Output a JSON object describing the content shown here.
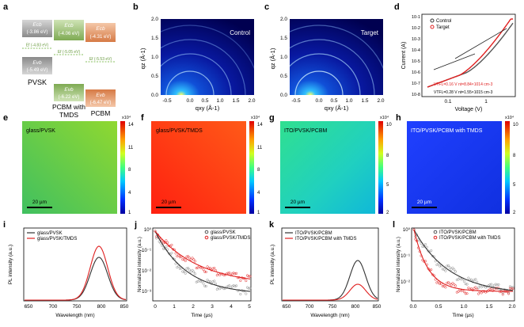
{
  "panels": {
    "a": {
      "letter": "a",
      "pvsk": {
        "ecb": "Ecb",
        "ecb_val": "(-3.86 eV)",
        "ef": "Ef (-4.83 eV)",
        "evb": "Evb",
        "evb_val": "(-5.49 eV)",
        "label": "PVSK"
      },
      "tmds": {
        "ecb": "Ecb",
        "ecb_val": "(-4.06 eV)",
        "ef": "Ef (-5.05 eV)",
        "evb": "Evb",
        "evb_val": "(-6.22 eV)",
        "label": "PCBM with TMDS"
      },
      "pcbm": {
        "ecb": "Ecb",
        "ecb_val": "(-4.31 eV)",
        "ef": "Ef (-5.53 eV)",
        "evb": "Evb",
        "evb_val": "(-6.47 eV)",
        "label": "PCBM"
      }
    },
    "b": {
      "letter": "b",
      "tag": "Control",
      "ylabel": "qz (Å-1)",
      "xlabel": "qxy (Å-1)",
      "xticks": [
        "-0.5",
        "0.0",
        "0.5",
        "1.0",
        "1.5",
        "2.0"
      ],
      "yticks": [
        "0.0",
        "0.5",
        "1.0",
        "1.5",
        "2.0"
      ]
    },
    "c": {
      "letter": "c",
      "tag": "Target",
      "ylabel": "qz (Å-1)",
      "xlabel": "qxy (Å-1)",
      "xticks": [
        "-0.5",
        "0.0",
        "0.5",
        "1.0",
        "1.5",
        "2.0"
      ],
      "yticks": [
        "0.0",
        "0.5",
        "1.0",
        "1.5",
        "2.0"
      ]
    },
    "d": {
      "letter": "d",
      "ylabel": "Current (A)",
      "xlabel": "Voltage (V)",
      "legend": [
        "Control",
        "Target"
      ],
      "yticks": [
        "10-8",
        "10-7",
        "10-6",
        "10-5",
        "10-4",
        "10-3",
        "10-2",
        "10-1"
      ],
      "xticks": [
        "0.1",
        "1"
      ],
      "note_red": "VTFL=0.16 V nt=8.84×1014 cm-3",
      "note_black": "VTFL=0.28 V nt=1.55×1015 cm-3"
    },
    "e": {
      "letter": "e",
      "label": "glass/PVSK",
      "scale": "20 µm",
      "cb_exp": "x10⁴",
      "cb_ticks": [
        "14",
        "11",
        "8",
        "4",
        "1"
      ]
    },
    "f": {
      "letter": "f",
      "label": "glass/PVSK/TMDS",
      "scale": "20 µm",
      "cb_exp": "x10⁴",
      "cb_ticks": [
        "14",
        "11",
        "8",
        "4",
        "1"
      ]
    },
    "g": {
      "letter": "g",
      "label": "ITO/PVSK/PCBM",
      "scale": "20 µm",
      "cb_exp": "x10⁴",
      "cb_ticks": [
        "10",
        "8",
        "5",
        "2"
      ]
    },
    "h": {
      "letter": "h",
      "label": "ITO/PVSK/PCBM with TMDS",
      "scale": "20 µm",
      "cb_exp": "x10⁴",
      "cb_ticks": [
        "10",
        "8",
        "5",
        "2"
      ]
    },
    "i": {
      "letter": "i",
      "ylabel": "PL intensity (a.u.)",
      "xlabel": "Wavelength (nm)",
      "legend": [
        "glass/PVSK",
        "glass/PVSK/TMDS"
      ],
      "xticks": [
        "650",
        "700",
        "750",
        "800",
        "850"
      ]
    },
    "j": {
      "letter": "j",
      "ylabel": "Normalized intensity (a.u.)",
      "xlabel": "Time (µs)",
      "legend": [
        "glass/PVSK",
        "glass/PVSK/TMDS"
      ],
      "xticks": [
        "0",
        "1",
        "2",
        "3",
        "4",
        "5"
      ],
      "yticks": [
        "10⁰",
        "10⁻¹",
        "10⁻²",
        "10⁻³"
      ]
    },
    "k": {
      "letter": "k",
      "ylabel": "PL intensity (a.u.)",
      "xlabel": "Wavelength (nm)",
      "legend": [
        "ITO/PVSK/PCBM",
        "ITO/PVSK/PCBM with TMDS"
      ],
      "xticks": [
        "650",
        "700",
        "750",
        "800",
        "850"
      ]
    },
    "l": {
      "letter": "l",
      "ylabel": "Normalized intensity (a.u.)",
      "xlabel": "Time (µs)",
      "legend": [
        "ITO/PVSK/PCBM",
        "ITO/PVSK/PCBM with TMDS"
      ],
      "xticks": [
        "0.0",
        "0.5",
        "1.0",
        "1.5",
        "2.0"
      ],
      "yticks": [
        "10⁰",
        "10⁻¹",
        "10⁻²"
      ]
    }
  },
  "colors": {
    "red": "#e02020",
    "dark": "#333333",
    "gray": "#777777"
  }
}
